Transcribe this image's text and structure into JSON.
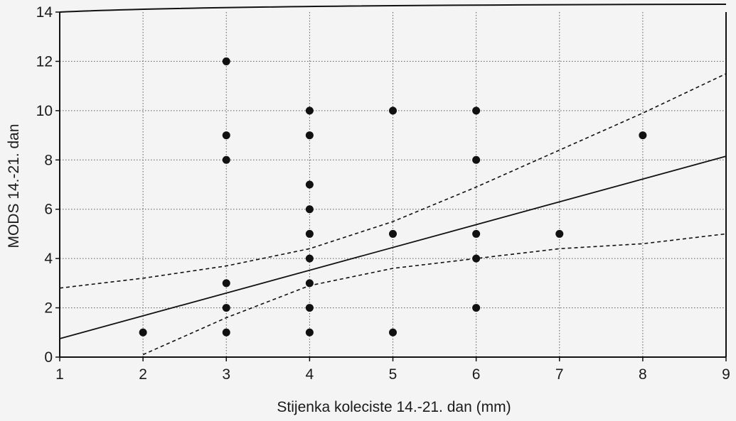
{
  "chart_data": {
    "type": "scatter",
    "title": "",
    "xlabel": "Stijenka koleciste 14.-21. dan (mm)",
    "ylabel": "MODS 14.-21. dan",
    "xlim": [
      1,
      9
    ],
    "ylim": [
      0,
      14
    ],
    "x_ticks": [
      "1",
      "2",
      "3",
      "4",
      "5",
      "6",
      "7",
      "8",
      "9"
    ],
    "y_ticks": [
      "0",
      "2",
      "4",
      "6",
      "8",
      "10",
      "12",
      "14"
    ],
    "grid": true,
    "legend": "none",
    "series": [
      {
        "points": [
          [
            2,
            1
          ],
          [
            3,
            1
          ],
          [
            3,
            2
          ],
          [
            3,
            3
          ],
          [
            3,
            8
          ],
          [
            3,
            9
          ],
          [
            3,
            12
          ],
          [
            4,
            1
          ],
          [
            4,
            2
          ],
          [
            4,
            3
          ],
          [
            4,
            4
          ],
          [
            4,
            5
          ],
          [
            4,
            6
          ],
          [
            4,
            7
          ],
          [
            4,
            9
          ],
          [
            4,
            10
          ],
          [
            5,
            1
          ],
          [
            5,
            5
          ],
          [
            5,
            10
          ],
          [
            6,
            2
          ],
          [
            6,
            4
          ],
          [
            6,
            5
          ],
          [
            6,
            8
          ],
          [
            6,
            10
          ],
          [
            7,
            5
          ],
          [
            8,
            9
          ]
        ]
      }
    ],
    "regression_line": {
      "x": [
        1,
        9
      ],
      "y": [
        0.75,
        8.15
      ]
    },
    "confidence_bands": {
      "upper": {
        "x": [
          1,
          2,
          3,
          4,
          5,
          6,
          7,
          8,
          9
        ],
        "y": [
          2.8,
          3.2,
          3.7,
          4.4,
          5.5,
          6.9,
          8.4,
          9.9,
          11.5
        ]
      },
      "lower": {
        "x": [
          2,
          3,
          4,
          5,
          6,
          7,
          8,
          9
        ],
        "y": [
          0.1,
          1.6,
          2.9,
          3.6,
          4.0,
          4.4,
          4.6,
          5.0
        ]
      }
    },
    "colors": {
      "background": "#f4f4f4",
      "points": "#111111",
      "lines": "#111111",
      "grid": "#5a5a5a"
    }
  }
}
